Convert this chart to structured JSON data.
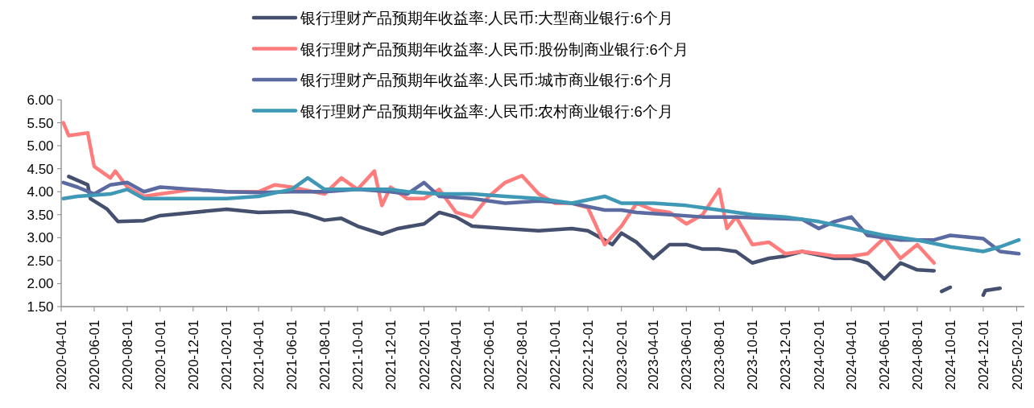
{
  "chart_data": {
    "type": "line",
    "legend": "top",
    "line_style": "solid",
    "marker": "none",
    "grid": false,
    "xlim": [
      "2020-04-01",
      "2025-02-15"
    ],
    "ylim": [
      1.5,
      6
    ],
    "yticks": [
      {
        "value": 1.5,
        "label": "1.50"
      },
      {
        "value": 2,
        "label": "2.00"
      },
      {
        "value": 2.5,
        "label": "2.50"
      },
      {
        "value": 3,
        "label": "3.00"
      },
      {
        "value": 3.5,
        "label": "3.50"
      },
      {
        "value": 4,
        "label": "4.00"
      },
      {
        "value": 4.5,
        "label": "4.50"
      },
      {
        "value": 5,
        "label": "5.00"
      },
      {
        "value": 5.5,
        "label": "5.50"
      },
      {
        "value": 6,
        "label": "6.00"
      }
    ],
    "xticks": [
      "2020-04-01",
      "2020-06-01",
      "2020-08-01",
      "2020-10-01",
      "2020-12-01",
      "2021-02-01",
      "2021-04-01",
      "2021-06-01",
      "2021-08-01",
      "2021-10-01",
      "2021-12-01",
      "2022-02-01",
      "2022-04-01",
      "2022-06-01",
      "2022-08-01",
      "2022-10-01",
      "2022-12-01",
      "2023-02-01",
      "2023-04-01",
      "2023-06-01",
      "2023-08-01",
      "2023-10-01",
      "2023-12-01",
      "2024-02-01",
      "2024-04-01",
      "2024-06-01",
      "2024-08-01",
      "2024-10-01",
      "2024-12-01",
      "2025-02-01"
    ],
    "series": [
      {
        "name": "银行理财产品预期年收益率:人民币:大型商业银行:6个月",
        "color": "#44506e",
        "x": [
          "2020-04-15",
          "2020-05-20",
          "2020-05-25",
          "2020-06-25",
          "2020-07-15",
          "2020-09-01",
          "2020-10-01",
          "2020-12-01",
          "2021-02-01",
          "2021-04-01",
          "2021-06-01",
          "2021-07-01",
          "2021-08-01",
          "2021-09-01",
          "2021-10-01",
          "2021-11-15",
          "2021-12-15",
          "2022-02-01",
          "2022-03-01",
          "2022-04-01",
          "2022-05-01",
          "2022-07-01",
          "2022-09-01",
          "2022-11-01",
          "2022-12-01",
          "2023-01-01",
          "2023-01-15",
          "2023-02-01",
          "2023-03-01",
          "2023-04-01",
          "2023-05-01",
          "2023-06-01",
          "2023-07-01",
          "2023-08-01",
          "2023-09-01",
          "2023-10-01",
          "2023-11-01",
          "2023-12-01",
          "2024-01-01",
          "2024-03-01",
          "2024-04-01",
          "2024-05-01",
          "2024-06-01",
          "2024-07-01",
          "2024-08-01",
          "2024-09-01",
          "2024-09-08",
          "2024-09-15",
          "2024-10-01",
          "2024-11-01",
          "2024-12-01",
          "2024-12-05",
          "2025-01-01"
        ],
        "values": [
          4.33,
          4.15,
          3.85,
          3.62,
          3.35,
          3.37,
          3.48,
          3.55,
          3.62,
          3.55,
          3.57,
          3.5,
          3.38,
          3.42,
          3.25,
          3.08,
          3.2,
          3.3,
          3.55,
          3.45,
          3.25,
          3.2,
          3.15,
          3.2,
          3.15,
          2.95,
          2.85,
          3.1,
          2.9,
          2.55,
          2.85,
          2.85,
          2.75,
          2.75,
          2.7,
          2.45,
          2.55,
          2.6,
          2.7,
          2.55,
          2.55,
          2.45,
          2.1,
          2.45,
          2.3,
          2.28,
          null,
          1.83,
          1.92,
          null,
          1.75,
          1.85,
          1.9
        ]
      },
      {
        "name": "银行理财产品预期年收益率:人民币:股份制商业银行:6个月",
        "color": "#ff7c7c",
        "x": [
          "2020-04-05",
          "2020-04-15",
          "2020-05-20",
          "2020-06-01",
          "2020-07-01",
          "2020-07-10",
          "2020-08-01",
          "2020-09-01",
          "2020-10-01",
          "2020-12-01",
          "2021-02-01",
          "2021-04-01",
          "2021-05-01",
          "2021-06-01",
          "2021-08-01",
          "2021-09-01",
          "2021-10-01",
          "2021-11-01",
          "2021-11-15",
          "2021-12-01",
          "2022-01-01",
          "2022-02-01",
          "2022-03-01",
          "2022-04-01",
          "2022-05-01",
          "2022-06-01",
          "2022-07-01",
          "2022-08-01",
          "2022-09-01",
          "2022-10-01",
          "2022-11-01",
          "2022-12-01",
          "2023-01-01",
          "2023-02-01",
          "2023-03-01",
          "2023-04-01",
          "2023-05-01",
          "2023-06-01",
          "2023-07-01",
          "2023-08-01",
          "2023-08-15",
          "2023-09-01",
          "2023-10-01",
          "2023-11-01",
          "2023-12-01",
          "2024-01-01",
          "2024-02-01",
          "2024-03-01",
          "2024-04-01",
          "2024-05-01",
          "2024-06-01",
          "2024-07-01",
          "2024-08-01",
          "2024-09-01"
        ],
        "values": [
          5.5,
          5.22,
          5.28,
          4.55,
          4.3,
          4.45,
          4.1,
          3.9,
          3.95,
          4.05,
          4.0,
          4.0,
          4.15,
          4.1,
          3.95,
          4.3,
          4.05,
          4.45,
          3.7,
          4.1,
          3.85,
          3.85,
          4.05,
          3.55,
          3.45,
          3.9,
          4.2,
          4.35,
          3.95,
          3.75,
          3.75,
          3.65,
          2.85,
          3.25,
          3.75,
          3.6,
          3.55,
          3.3,
          3.5,
          4.05,
          3.2,
          3.45,
          2.85,
          2.9,
          2.65,
          2.7,
          2.65,
          2.6,
          2.6,
          2.65,
          3.0,
          2.55,
          2.85,
          2.45
        ]
      },
      {
        "name": "银行理财产品预期年收益率:人民币:城市商业银行:6个月",
        "color": "#5b6aa0",
        "x": [
          "2020-04-05",
          "2020-05-01",
          "2020-06-01",
          "2020-07-01",
          "2020-08-01",
          "2020-09-01",
          "2020-10-01",
          "2020-12-01",
          "2021-02-01",
          "2021-04-01",
          "2021-06-01",
          "2021-08-01",
          "2021-10-01",
          "2021-12-01",
          "2022-01-01",
          "2022-02-01",
          "2022-03-01",
          "2022-05-01",
          "2022-07-01",
          "2022-09-01",
          "2022-11-01",
          "2023-01-01",
          "2023-02-01",
          "2023-03-01",
          "2023-05-01",
          "2023-07-01",
          "2023-09-01",
          "2023-11-01",
          "2024-01-01",
          "2024-02-01",
          "2024-03-01",
          "2024-04-01",
          "2024-05-01",
          "2024-07-01",
          "2024-09-01",
          "2024-10-01",
          "2024-12-01",
          "2025-01-01",
          "2025-02-05"
        ],
        "values": [
          4.2,
          4.1,
          3.95,
          4.15,
          4.2,
          4.0,
          4.1,
          4.05,
          4.0,
          3.98,
          4.0,
          4.0,
          4.05,
          4.0,
          3.95,
          4.2,
          3.9,
          3.85,
          3.75,
          3.8,
          3.75,
          3.6,
          3.6,
          3.55,
          3.5,
          3.45,
          3.45,
          3.42,
          3.4,
          3.2,
          3.35,
          3.45,
          3.05,
          2.95,
          2.95,
          3.05,
          2.98,
          2.7,
          2.65
        ]
      },
      {
        "name": "银行理财产品预期年收益率:人民币:农村商业银行:6个月",
        "color": "#3e98b6",
        "x": [
          "2020-04-05",
          "2020-05-01",
          "2020-07-01",
          "2020-08-01",
          "2020-09-01",
          "2020-10-01",
          "2020-12-01",
          "2021-02-01",
          "2021-04-01",
          "2021-06-01",
          "2021-07-01",
          "2021-08-01",
          "2021-10-01",
          "2021-12-01",
          "2022-01-01",
          "2022-03-01",
          "2022-05-01",
          "2022-07-01",
          "2022-09-01",
          "2022-11-01",
          "2023-01-01",
          "2023-02-01",
          "2023-04-01",
          "2023-06-01",
          "2023-08-01",
          "2023-10-01",
          "2023-12-01",
          "2024-02-01",
          "2024-04-01",
          "2024-06-01",
          "2024-08-01",
          "2024-10-01",
          "2024-12-01",
          "2025-01-01",
          "2025-02-05"
        ],
        "values": [
          3.85,
          3.9,
          3.95,
          4.05,
          3.85,
          3.85,
          3.85,
          3.85,
          3.9,
          4.05,
          4.3,
          4.05,
          4.05,
          4.05,
          4.0,
          3.95,
          3.95,
          3.9,
          3.85,
          3.75,
          3.9,
          3.75,
          3.75,
          3.7,
          3.6,
          3.5,
          3.45,
          3.35,
          3.2,
          3.05,
          2.95,
          2.8,
          2.7,
          2.8,
          2.95
        ]
      }
    ]
  }
}
